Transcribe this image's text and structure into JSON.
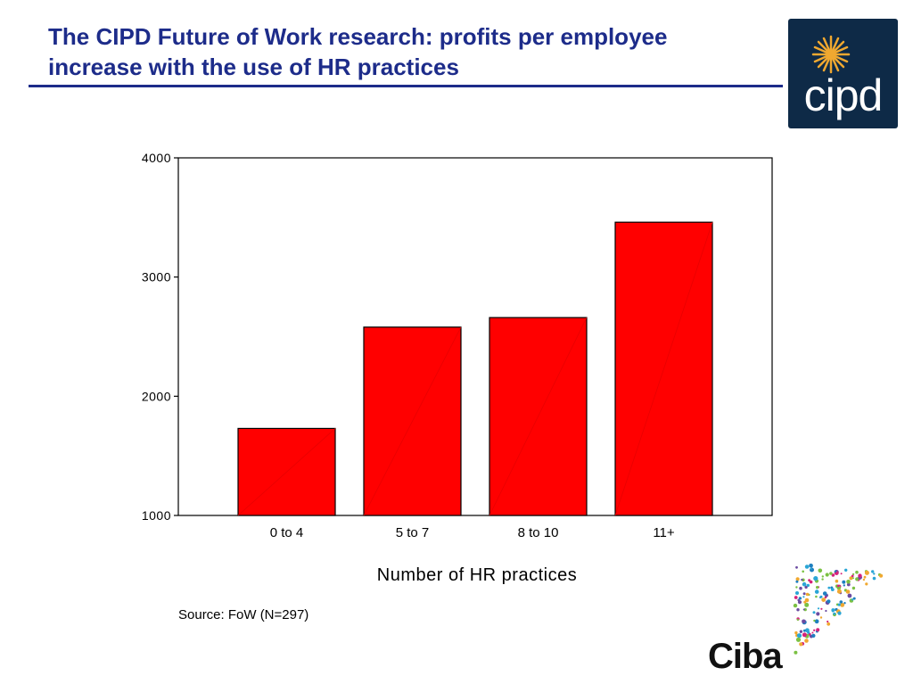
{
  "slide": {
    "title": "The CIPD Future of Work research: profits per employee increase with the use of HR practices",
    "source": "Source: FoW (N=297)"
  },
  "logos": {
    "cipd_text": "cipd",
    "ciba_text": "Ciba"
  },
  "colors": {
    "title": "#1d2c8a",
    "bar": "#ff0000",
    "logo_bg": "#0e2a47",
    "logo_star": "#f0a830"
  },
  "chart_data": {
    "type": "bar",
    "categories": [
      "0 to 4",
      "5 to 7",
      "8 to 10",
      "11+"
    ],
    "values": [
      1730,
      2580,
      2660,
      3460
    ],
    "xlabel": "Number of HR practices",
    "ylabel": "",
    "ylim": [
      1000,
      4000
    ],
    "yticks": [
      1000,
      2000,
      3000,
      4000
    ],
    "ytick_labels": [
      "1000",
      "2000",
      "3000",
      "4000"
    ],
    "grid": false
  }
}
